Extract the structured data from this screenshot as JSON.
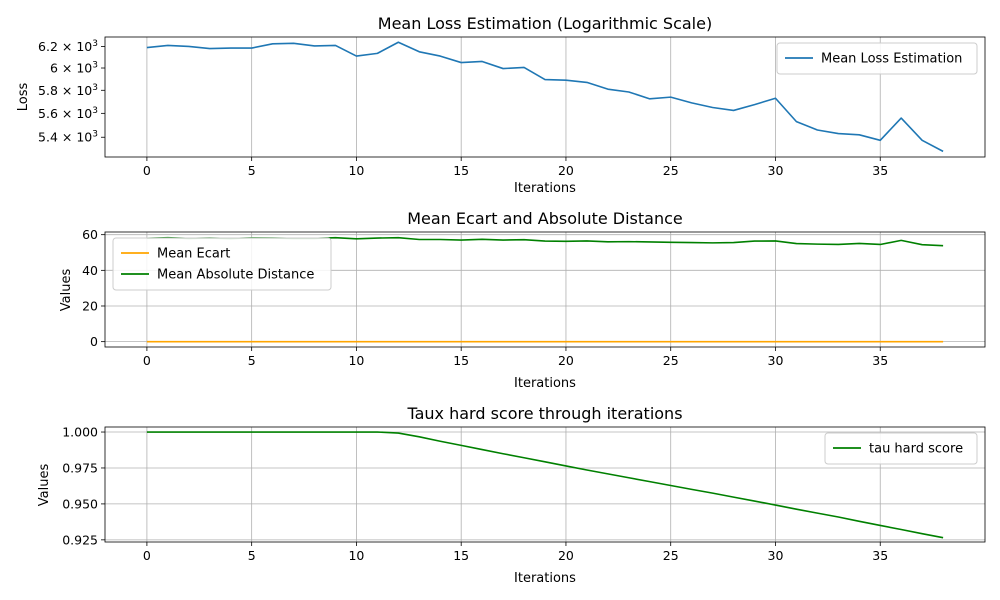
{
  "chart_data": [
    {
      "type": "line",
      "title": "Mean Loss Estimation (Logarithmic Scale)",
      "xlabel": "Iterations",
      "ylabel": "Loss",
      "yscale": "log",
      "grid": "x-only",
      "legend_position": "top-right",
      "xlim": [
        -2,
        40
      ],
      "ylim": [
        5240,
        6290
      ],
      "x_ticks": [
        0,
        5,
        10,
        15,
        20,
        25,
        30,
        35
      ],
      "x_tick_labels": [
        "0",
        "5",
        "10",
        "15",
        "20",
        "25",
        "30",
        "35"
      ],
      "y_ticks": [
        6200,
        6000,
        5800,
        5600,
        5400
      ],
      "y_tick_labels": [
        {
          "mantissa": "6.2",
          "exp": "3"
        },
        {
          "mantissa": "6",
          "exp": "3"
        },
        {
          "mantissa": "5.8",
          "exp": "3"
        },
        {
          "mantissa": "5.6",
          "exp": "3"
        },
        {
          "mantissa": "5.4",
          "exp": "3"
        }
      ],
      "y_tick_times": "×",
      "y_tick_base": "10",
      "x": [
        0,
        1,
        2,
        3,
        4,
        5,
        6,
        7,
        8,
        9,
        10,
        11,
        12,
        13,
        14,
        15,
        16,
        17,
        18,
        19,
        20,
        21,
        22,
        23,
        24,
        25,
        26,
        27,
        28,
        29,
        30,
        31,
        32,
        33,
        34,
        35,
        36,
        37,
        38
      ],
      "series": [
        {
          "name": "Mean Loss Estimation",
          "color": "#1f77b4",
          "values": [
            6190,
            6210,
            6200,
            6180,
            6185,
            6185,
            6225,
            6230,
            6205,
            6210,
            6110,
            6135,
            6240,
            6150,
            6110,
            6050,
            6060,
            5995,
            6005,
            5895,
            5890,
            5870,
            5810,
            5785,
            5725,
            5740,
            5690,
            5650,
            5625,
            5675,
            5730,
            5530,
            5460,
            5430,
            5420,
            5375,
            5560,
            5375,
            5285
          ]
        }
      ]
    },
    {
      "type": "line",
      "title": "Mean Ecart and Absolute Distance",
      "xlabel": "Iterations",
      "ylabel": "Values",
      "grid": "both",
      "legend_position": "upper-left",
      "xlim": [
        -2,
        40
      ],
      "ylim": [
        -3,
        61.5
      ],
      "x_ticks": [
        0,
        5,
        10,
        15,
        20,
        25,
        30,
        35
      ],
      "x_tick_labels": [
        "0",
        "5",
        "10",
        "15",
        "20",
        "25",
        "30",
        "35"
      ],
      "y_ticks": [
        0,
        20,
        40,
        60
      ],
      "y_tick_labels": [
        "0",
        "20",
        "40",
        "60"
      ],
      "x": [
        0,
        1,
        2,
        3,
        4,
        5,
        6,
        7,
        8,
        9,
        10,
        11,
        12,
        13,
        14,
        15,
        16,
        17,
        18,
        19,
        20,
        21,
        22,
        23,
        24,
        25,
        26,
        27,
        28,
        29,
        30,
        31,
        32,
        33,
        34,
        35,
        36,
        37,
        38
      ],
      "series": [
        {
          "name": "Mean Ecart",
          "color": "#ffa500",
          "values": [
            0,
            0,
            0,
            0,
            0,
            0,
            0,
            0,
            0,
            0,
            0,
            0,
            0,
            0,
            0,
            0,
            0,
            0,
            0,
            0,
            0,
            0,
            0,
            0,
            0,
            0,
            0,
            0,
            0,
            0,
            0,
            0,
            0,
            0,
            0,
            0,
            0,
            0,
            0
          ]
        },
        {
          "name": "Mean Absolute Distance",
          "color": "#008000",
          "values": [
            58.0,
            58.3,
            57.9,
            58.1,
            57.8,
            58.2,
            58.1,
            57.9,
            57.9,
            58.3,
            57.7,
            58.1,
            58.3,
            57.3,
            57.3,
            57.0,
            57.4,
            57.0,
            57.2,
            56.4,
            56.3,
            56.5,
            56.0,
            56.1,
            55.9,
            55.7,
            55.6,
            55.4,
            55.6,
            56.4,
            56.5,
            55.0,
            54.7,
            54.5,
            55.1,
            54.5,
            56.8,
            54.4,
            53.8
          ]
        }
      ]
    },
    {
      "type": "line",
      "title": "Taux hard score through iterations",
      "xlabel": "Iterations",
      "ylabel": "Values",
      "grid": "both",
      "legend_position": "top-right",
      "xlim": [
        -2,
        40
      ],
      "ylim": [
        0.9235,
        1.0035
      ],
      "x_ticks": [
        0,
        5,
        10,
        15,
        20,
        25,
        30,
        35
      ],
      "x_tick_labels": [
        "0",
        "5",
        "10",
        "15",
        "20",
        "25",
        "30",
        "35"
      ],
      "y_ticks": [
        1.0,
        0.975,
        0.95,
        0.925
      ],
      "y_tick_labels": [
        "1.000",
        "0.975",
        "0.950",
        "0.925"
      ],
      "x": [
        0,
        1,
        2,
        3,
        4,
        5,
        6,
        7,
        8,
        9,
        10,
        11,
        12,
        13,
        14,
        15,
        16,
        17,
        18,
        19,
        20,
        21,
        22,
        23,
        24,
        25,
        26,
        27,
        28,
        29,
        30,
        31,
        32,
        33,
        34,
        35,
        36,
        37,
        38
      ],
      "series": [
        {
          "name": "tau hard score",
          "color": "#008000",
          "values": [
            1.0,
            1.0,
            1.0,
            1.0,
            1.0,
            1.0,
            1.0,
            1.0,
            1.0,
            1.0,
            1.0,
            1.0,
            0.9993,
            0.9967,
            0.9936,
            0.9907,
            0.9878,
            0.9849,
            0.9821,
            0.9793,
            0.9764,
            0.9736,
            0.9709,
            0.9682,
            0.9655,
            0.9628,
            0.9601,
            0.9575,
            0.9547,
            0.952,
            0.9492,
            0.9463,
            0.9436,
            0.9409,
            0.9379,
            0.935,
            0.9322,
            0.9293,
            0.9265
          ]
        }
      ]
    }
  ]
}
